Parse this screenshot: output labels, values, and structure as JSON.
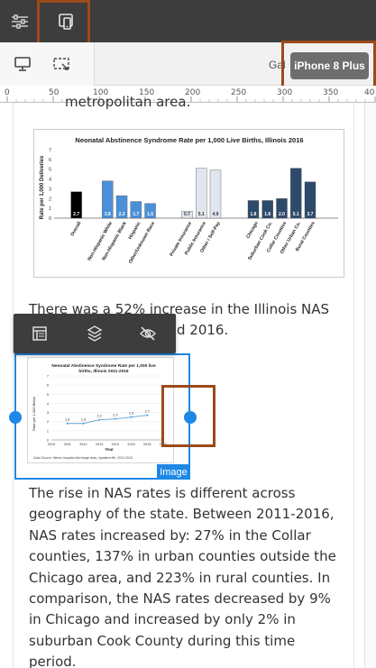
{
  "toolbar_top": {
    "settings_icon": "sliders-icon",
    "devices_icon": "devices-icon"
  },
  "toolbar2": {
    "gallery_text": "Gal",
    "device_label": "iPhone 8 Plus"
  },
  "ruler": {
    "ticks": [
      "0",
      "50",
      "100",
      "150",
      "200",
      "250",
      "300",
      "350",
      "40"
    ]
  },
  "page": {
    "cut_text": "metropolitan area.",
    "para1_line1": "There was a 52% increase in the Illinois NAS",
    "para1_line2": "d 2016.",
    "para2": "The rise in NAS rates is different across geography of the state. Between 2011-2016, NAS rates increased by: 27% in the Collar counties, 137% in urban counties outside the Chicago area, and 223% in rural counties. In comparison, the NAS rates decreased by 9% in Chicago and increased by only 2% in suburban Cook County during this time period."
  },
  "image_badge": "Image",
  "colors": {
    "topbar": "#3d3d3d",
    "accent": "#1e88e5",
    "highlight": "#9c4a1a"
  },
  "chart_data": [
    {
      "type": "bar",
      "title": "Neonatal Abstinence Syndrome Rate per 1,000 Live Births, Illinois 2016",
      "ylabel": "Rate per 1,000 Deliveries",
      "ylim": [
        0,
        7
      ],
      "yticks": [
        "0",
        "1",
        "2",
        "3",
        "4",
        "5",
        "6",
        "7"
      ],
      "categories": [
        "Overall",
        "Non-Hispanic White",
        "Non-Hispanic Black",
        "Hispanic",
        "Other/Unknown Race",
        "Private Insurance",
        "Public Insurance",
        "Other / Self-Pay",
        "Chicago",
        "Suburban Cook Co.",
        "Collar Counties",
        "Other Urban Co.",
        "Rural Counties"
      ],
      "values": [
        2.7,
        3.8,
        2.3,
        1.7,
        1.5,
        0.7,
        5.1,
        4.9,
        1.8,
        1.8,
        2.0,
        5.1,
        3.7
      ],
      "labels": [
        "2.7",
        "3.8",
        "2.3",
        "1.7",
        "1.5",
        "0.7",
        "5.1",
        "4.9",
        "1.8",
        "1.8",
        "2.0",
        "5.1",
        "3.7"
      ],
      "colors": [
        "#000000",
        "#4a90d9",
        "#4a90d9",
        "#4a90d9",
        "#4a90d9",
        "#dfe6ee",
        "#dfe6ee",
        "#dfe6ee",
        "#2e4a6b",
        "#2e4a6b",
        "#2e4a6b",
        "#2e4a6b",
        "#2e4a6b"
      ],
      "label_colors": [
        "#ffffff",
        "#ffffff",
        "#ffffff",
        "#ffffff",
        "#ffffff",
        "#333333",
        "#333333",
        "#333333",
        "#ffffff",
        "#ffffff",
        "#ffffff",
        "#ffffff",
        "#ffffff"
      ]
    },
    {
      "type": "line",
      "title": "Neonatal Abstinence Syndrome Rate per 1,000 live births, Illinois 2011-2016",
      "ylabel": "Rate per 1,000 Births",
      "xlabel": "Year",
      "ylim": [
        0,
        7
      ],
      "yticks": [
        "0",
        "1",
        "2",
        "3",
        "4",
        "5",
        "6",
        "7"
      ],
      "xticks": [
        "2010",
        "2011",
        "2012",
        "2013",
        "2014",
        "2015",
        "2016",
        "2017"
      ],
      "x": [
        "2011",
        "2012",
        "2013",
        "2014",
        "2015",
        "2016"
      ],
      "values": [
        1.8,
        1.8,
        2.2,
        2.3,
        2.5,
        2.7
      ],
      "labels": [
        "1.8",
        "1.8",
        "2.2",
        "2.3",
        "2.5",
        "2.7"
      ],
      "note": "Data Source: Illinois hospital discharge data, inpatient file, 2011-2016"
    }
  ]
}
